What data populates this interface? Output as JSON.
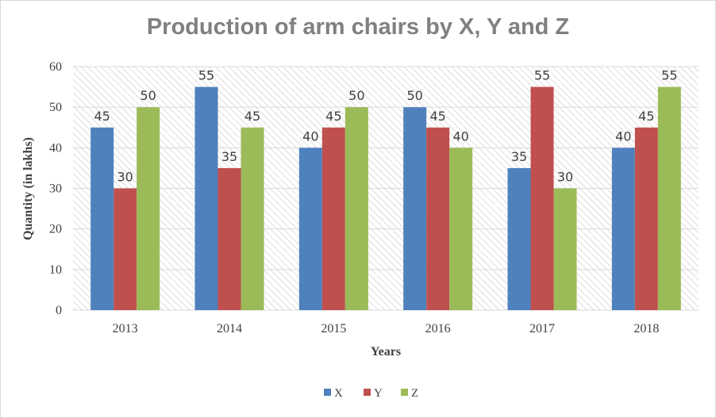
{
  "chart_data": {
    "type": "bar",
    "title": "Production of arm chairs by X, Y and Z",
    "xlabel": "Years",
    "ylabel": "Quantity (in lakhs)",
    "categories": [
      "2013",
      "2014",
      "2015",
      "2016",
      "2017",
      "2018"
    ],
    "series": [
      {
        "name": "X",
        "color": "#4F81BD",
        "values": [
          45,
          55,
          40,
          50,
          35,
          40
        ]
      },
      {
        "name": "Y",
        "color": "#C0504D",
        "values": [
          30,
          35,
          45,
          45,
          55,
          45
        ]
      },
      {
        "name": "Z",
        "color": "#9BBB59",
        "values": [
          50,
          45,
          50,
          40,
          30,
          55
        ]
      }
    ],
    "ylim": [
      0,
      60
    ],
    "yticks": [
      0,
      10,
      20,
      30,
      40,
      50,
      60
    ],
    "grid": true,
    "legend": "bottom"
  }
}
